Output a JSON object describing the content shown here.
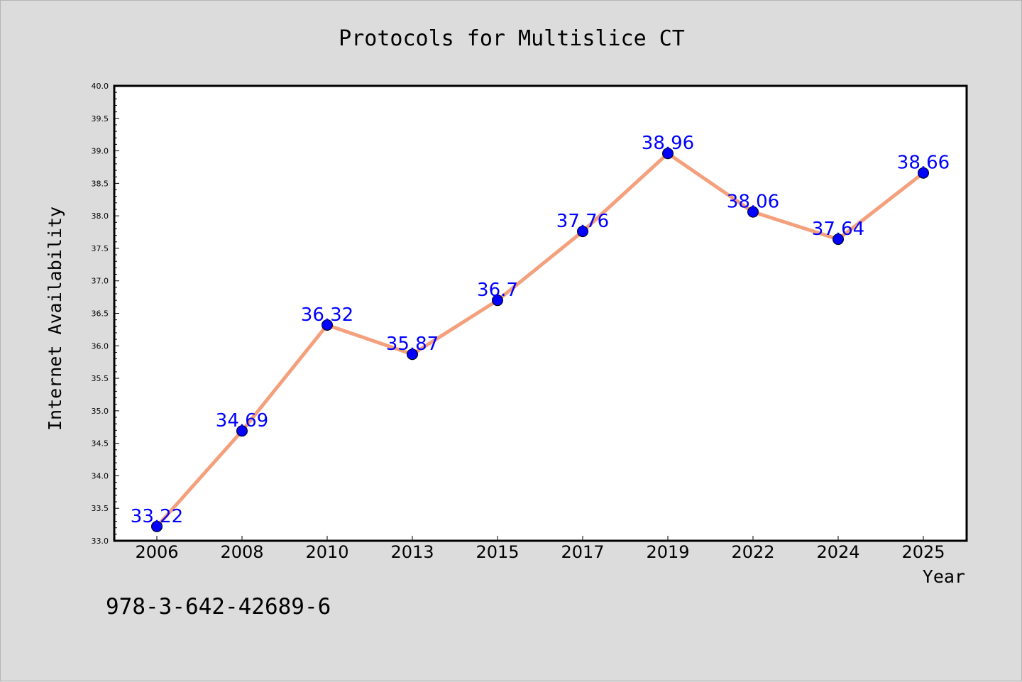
{
  "chart_data": {
    "type": "line",
    "title": "Protocols for Multislice CT",
    "xlabel": "Year",
    "ylabel": "Internet Availability",
    "categories": [
      "2006",
      "2008",
      "2010",
      "2013",
      "2015",
      "2017",
      "2019",
      "2022",
      "2024",
      "2025"
    ],
    "series": [
      {
        "values": [
          33.22,
          34.69,
          36.32,
          35.87,
          36.7,
          37.76,
          38.96,
          38.06,
          37.64,
          38.66
        ],
        "labels": [
          "33.22",
          "34.69",
          "36.32",
          "35.87",
          "36.7",
          "37.76",
          "38.96",
          "38.06",
          "37.64",
          "38.66"
        ]
      }
    ],
    "ylim": [
      33.0,
      40.0
    ],
    "yticks": [
      "33.0",
      "33.5",
      "34.0",
      "34.5",
      "35.0",
      "35.5",
      "36.0",
      "36.5",
      "37.0",
      "37.5",
      "38.0",
      "38.5",
      "39.0",
      "39.5",
      "40.0"
    ],
    "grid": false,
    "legend": "none",
    "colors": {
      "line": "#f4a07c",
      "marker": "#0000ff",
      "data_label": "#0000ff",
      "background": "#dcdcdc",
      "plot_area": "#ffffff"
    }
  },
  "footer": {
    "isbn": "978-3-642-42689-6"
  }
}
